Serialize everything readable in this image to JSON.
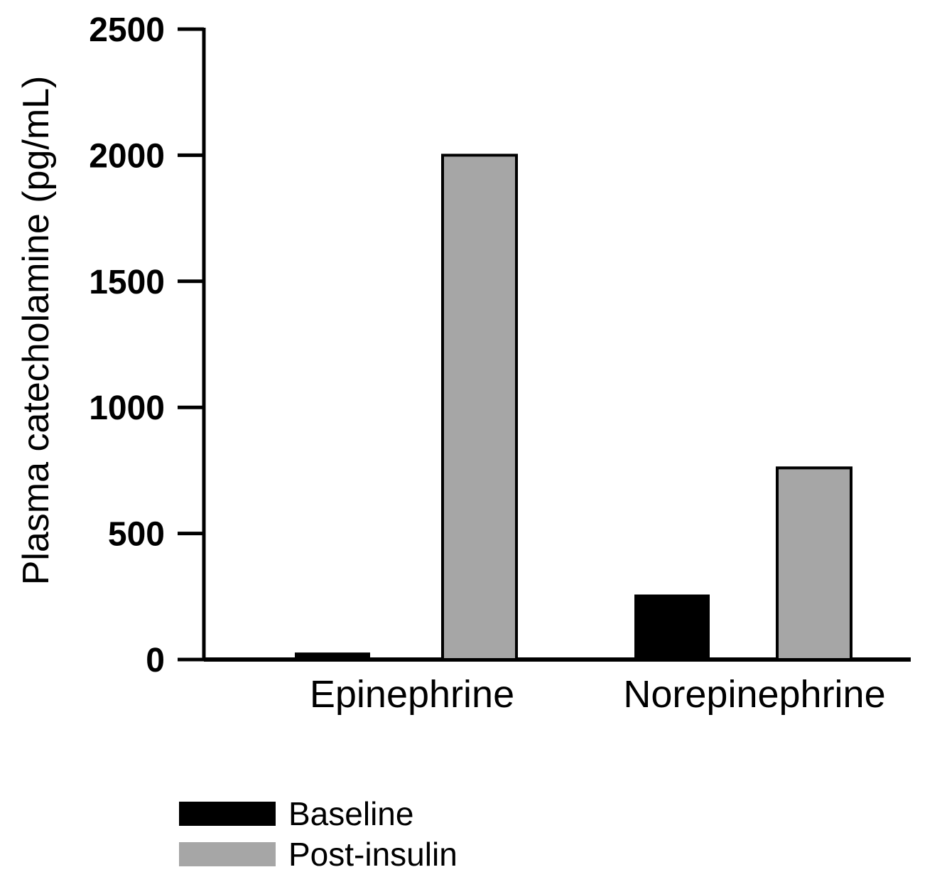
{
  "chart_data": {
    "type": "bar",
    "title": "",
    "xlabel": "",
    "ylabel": "Plasma catecholamine (pg/mL)",
    "categories": [
      "Epinephrine",
      "Norepinephrine"
    ],
    "series": [
      {
        "name": "Baseline",
        "values": [
          25,
          255
        ],
        "color": "#000000"
      },
      {
        "name": "Post-insulin",
        "values": [
          2000,
          760
        ],
        "color": "#a6a6a6"
      }
    ],
    "ylim": [
      0,
      2500
    ],
    "yticks": [
      0,
      500,
      1000,
      1500,
      2000,
      2500
    ],
    "grid": false,
    "legend": "bottom-left"
  }
}
